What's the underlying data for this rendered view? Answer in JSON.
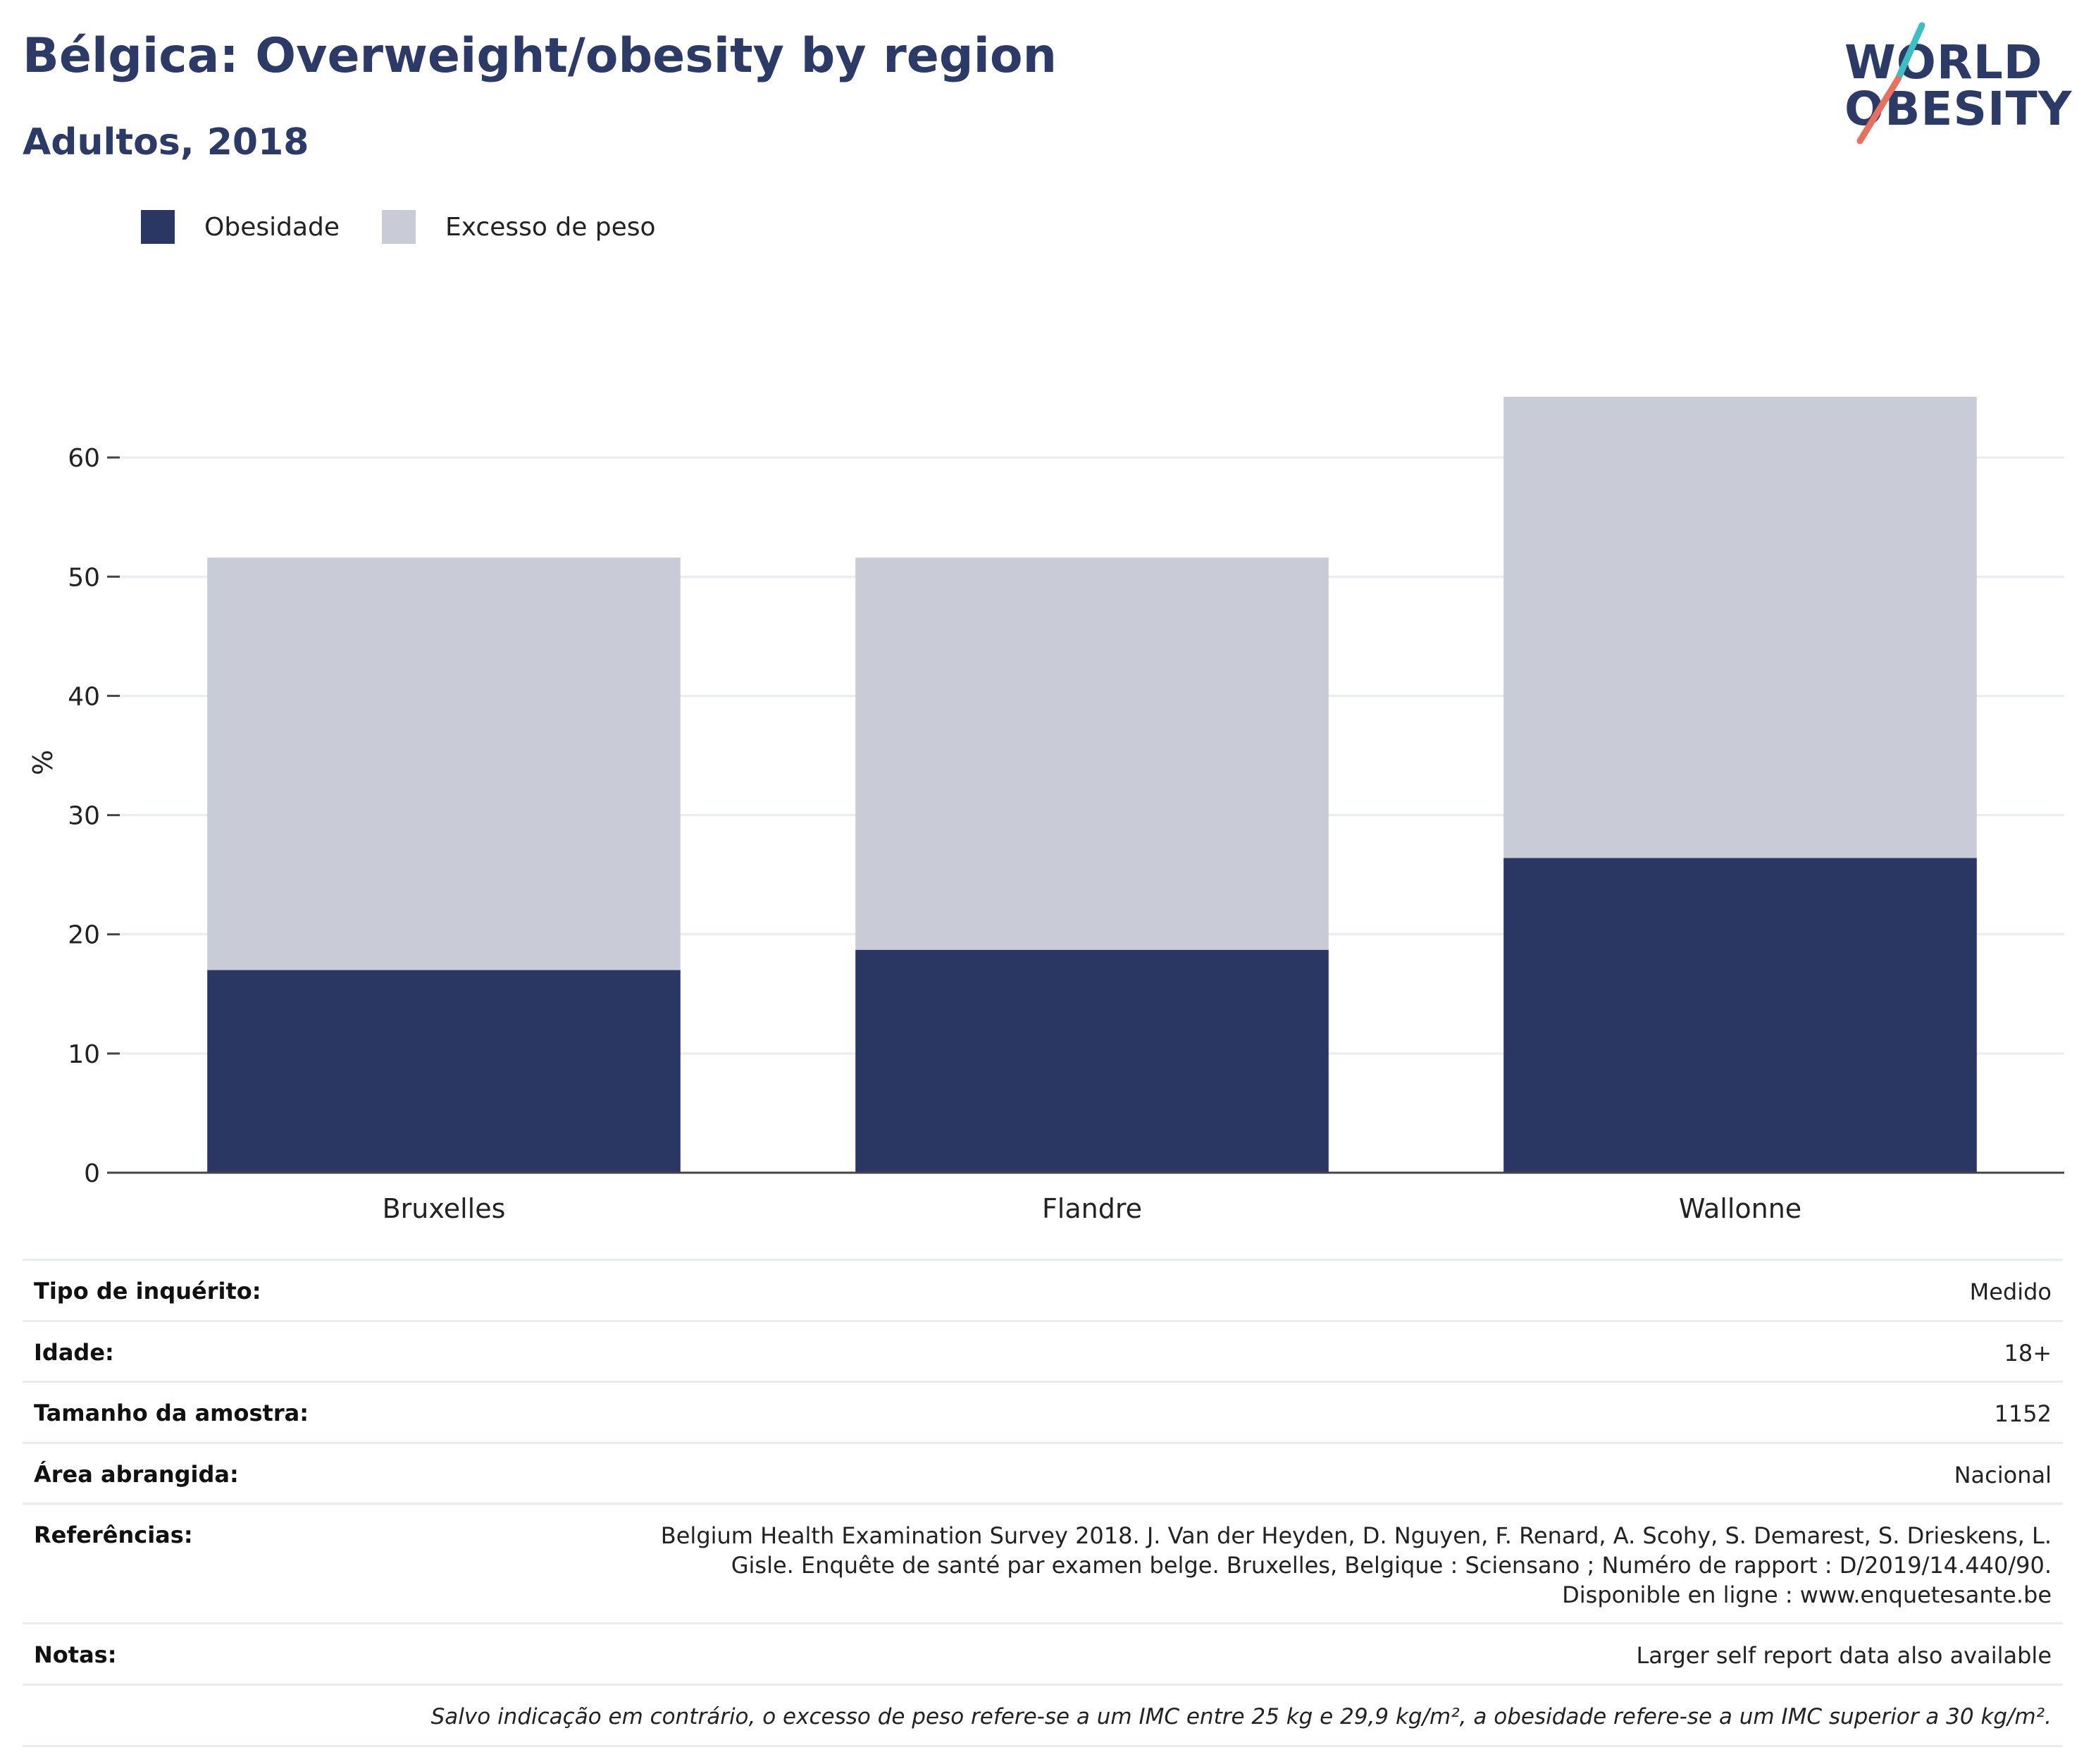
{
  "header": {
    "title": "Bélgica: Overweight/obesity by region",
    "subtitle": "Adultos, 2018"
  },
  "logo": {
    "line1": "WORLD",
    "line2": "OBESITY"
  },
  "colors": {
    "obesity": "#2b3763",
    "overweight": "#c9cbd6",
    "title": "#2b3a67",
    "logo_teal": "#3bbfc2",
    "logo_coral": "#e8705e"
  },
  "legend": [
    {
      "label": "Obesidade",
      "color": "#2b3763"
    },
    {
      "label": "Excesso de peso",
      "color": "#c9cbd6"
    }
  ],
  "chart_data": {
    "type": "bar",
    "stacked": true,
    "categories": [
      "Bruxelles",
      "Flandre",
      "Wallonne"
    ],
    "series": [
      {
        "name": "Obesidade",
        "values": [
          17.0,
          18.7,
          26.4
        ]
      },
      {
        "name": "Excesso de peso",
        "values": [
          34.6,
          32.9,
          38.7
        ]
      }
    ],
    "ylabel": "%",
    "ylim": [
      0,
      70
    ],
    "yticks": [
      0,
      10,
      20,
      30,
      40,
      50,
      60
    ],
    "grid": true
  },
  "info": {
    "rows": [
      {
        "key": "Tipo de inquérito:",
        "value": "Medido"
      },
      {
        "key": "Idade:",
        "value": "18+"
      },
      {
        "key": "Tamanho da amostra:",
        "value": "1152"
      },
      {
        "key": "Área abrangida:",
        "value": "Nacional"
      },
      {
        "key": "Referências:",
        "value": "Belgium Health Examination Survey 2018. J. Van der Heyden, D. Nguyen, F. Renard, A. Scohy, S. Demarest, S. Drieskens, L. Gisle. Enquête de santé par examen belge. Bruxelles, Belgique : Sciensano ; Numéro de rapport : D/2019/14.440/90. Disponible en ligne : www.enquetesante.be"
      },
      {
        "key": "Notas:",
        "value": "Larger self report data also available"
      }
    ],
    "footnote": "Salvo indicação em contrário, o excesso de peso refere-se a um IMC entre 25 kg e 29,9 kg/m², a obesidade refere-se a um IMC superior a 30 kg/m²."
  }
}
